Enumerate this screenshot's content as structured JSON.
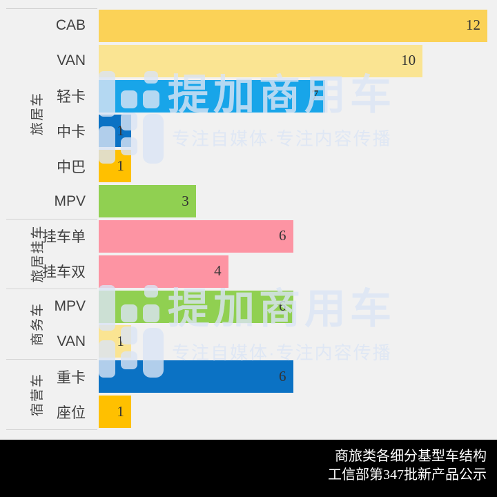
{
  "background": "#F1F1F1",
  "chart_data": {
    "type": "bar",
    "orientation": "horizontal",
    "value_axis_max": 12,
    "grid": false,
    "legend": false,
    "title": "商旅类各细分基型车结构",
    "source_note": "工信部第347批新产品公示",
    "groups": [
      {
        "name": "旅居车",
        "items": [
          {
            "label": "CAB",
            "value": 12,
            "color": "#FBD257"
          },
          {
            "label": "VAN",
            "value": 10,
            "color": "#FAE492"
          },
          {
            "label": "轻卡",
            "value": 7,
            "color": "#18A5E9"
          },
          {
            "label": "中卡",
            "value": 1,
            "color": "#0B72C4"
          },
          {
            "label": "中巴",
            "value": 1,
            "color": "#FFC000"
          },
          {
            "label": "MPV",
            "value": 3,
            "color": "#90D051"
          }
        ]
      },
      {
        "name": "旅居挂车",
        "items": [
          {
            "label": "挂车单",
            "value": 6,
            "color": "#FD94A3"
          },
          {
            "label": "挂车双",
            "value": 4,
            "color": "#FD94A3"
          }
        ]
      },
      {
        "name": "商务车",
        "items": [
          {
            "label": "MPV",
            "value": 6,
            "color": "#90D051"
          },
          {
            "label": "VAN",
            "value": 1,
            "color": "#FAE492"
          }
        ]
      },
      {
        "name": "宿营车",
        "items": [
          {
            "label": "重卡",
            "value": 6,
            "color": "#0B72C4"
          },
          {
            "label": "座位",
            "value": 1,
            "color": "#FFC000"
          }
        ]
      }
    ]
  },
  "watermark": {
    "brand": "提加商用车",
    "tagline": "专注自媒体·专注内容传播",
    "color": "#DBE5F5"
  },
  "footer": {
    "line1": "商旅类各细分基型车结构",
    "line2": "工信部第347批新产品公示",
    "background": "#000000",
    "text_color": "#FFFFFF"
  }
}
